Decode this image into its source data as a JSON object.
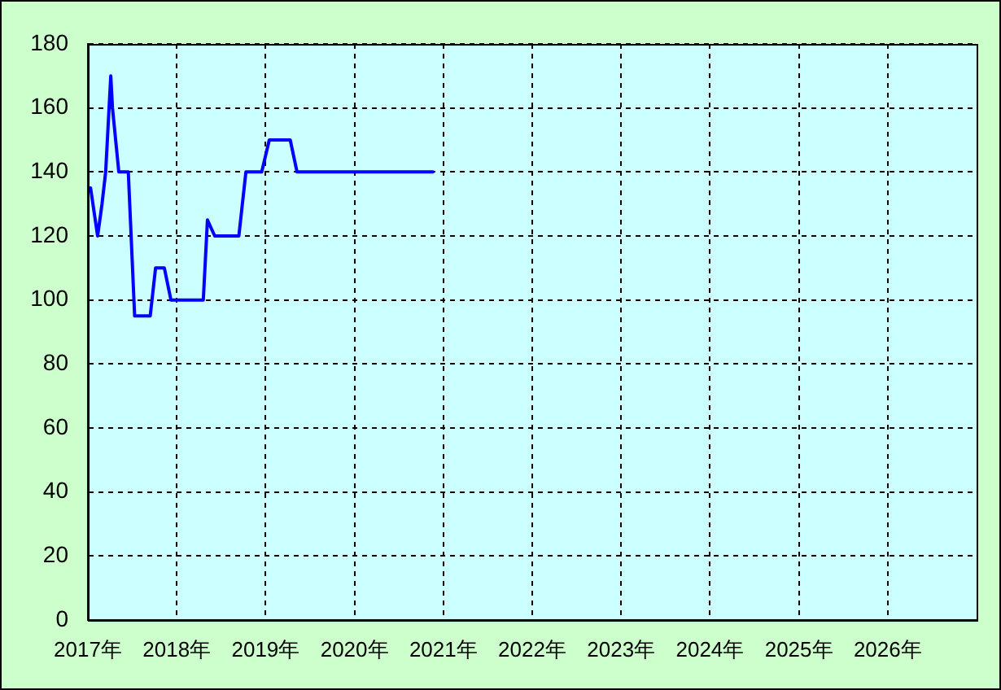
{
  "chart_data": {
    "type": "line",
    "x": [
      "2017-01-01",
      "2017-01-12",
      "2017-02-10",
      "2017-02-28",
      "2017-03-15",
      "2017-04-05",
      "2017-04-12",
      "2017-05-08",
      "2017-06-16",
      "2017-07-12",
      "2017-09-14",
      "2017-10-06",
      "2017-11-11",
      "2017-12-08",
      "2018-04-20",
      "2018-05-07",
      "2018-06-06",
      "2018-09-13",
      "2018-10-12",
      "2018-12-16",
      "2019-01-16",
      "2019-04-12",
      "2019-05-10",
      "2020-11-19"
    ],
    "values": [
      135,
      135,
      120,
      130,
      140,
      170,
      160,
      140,
      140,
      95,
      95,
      110,
      110,
      100,
      100,
      125,
      120,
      120,
      140,
      140,
      150,
      150,
      140,
      140
    ],
    "color": "#0000ff",
    "xlim": [
      "2017",
      "2027"
    ],
    "xticks": [
      {
        "value": "2017",
        "label": "2017年"
      },
      {
        "value": "2018",
        "label": "2018年"
      },
      {
        "value": "2019",
        "label": "2019年"
      },
      {
        "value": "2020",
        "label": "2020年"
      },
      {
        "value": "2021",
        "label": "2021年"
      },
      {
        "value": "2022",
        "label": "2022年"
      },
      {
        "value": "2023",
        "label": "2023年"
      },
      {
        "value": "2024",
        "label": "2024年"
      },
      {
        "value": "2025",
        "label": "2025年"
      },
      {
        "value": "2026",
        "label": "2026年"
      }
    ],
    "ylim": [
      0,
      180
    ],
    "yticks": [
      0,
      20,
      40,
      60,
      80,
      100,
      120,
      140,
      160,
      180
    ],
    "grid": true,
    "marker": "none",
    "line_style": "solid"
  }
}
